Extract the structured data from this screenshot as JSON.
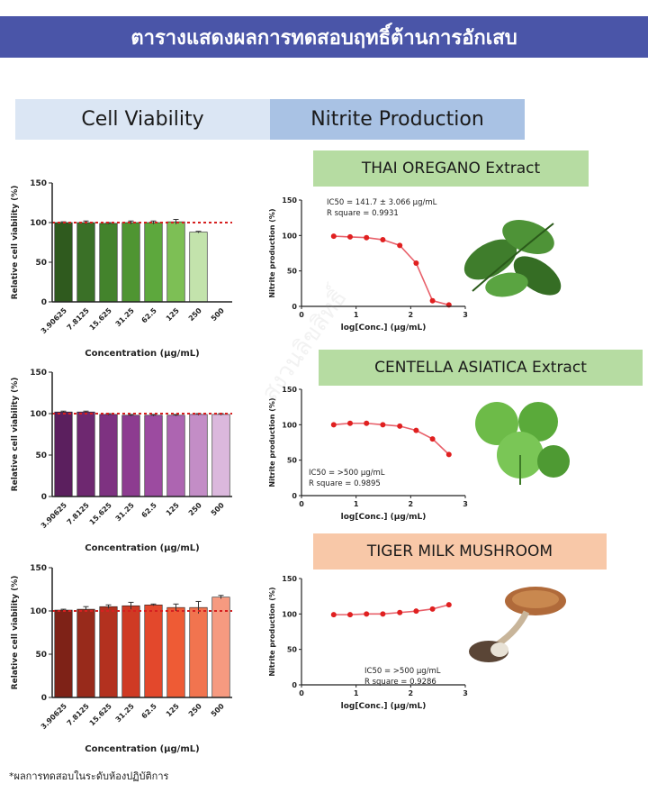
{
  "header": {
    "title": "ตารางแสดงผลการทดสอบฤทธิ์ต้านการอักเสบ"
  },
  "columns": {
    "left": "Cell Viability",
    "right": "Nitrite Production"
  },
  "footnote": "*ผลการทดสอบในระดับห้องปฏิบัติการ",
  "watermark": "สงวนลิขสิทธิ์",
  "extracts": [
    {
      "name": "THAI OREGANO Extract",
      "image_icon": "oregano-leaves-icon"
    },
    {
      "name": "CENTELLA ASIATICA Extract",
      "image_icon": "centella-leaves-icon"
    },
    {
      "name": "TIGER MILK MUSHROOM",
      "image_icon": "mushroom-icon"
    }
  ],
  "chart_data": [
    {
      "type": "bar",
      "panel": "oregano-viability",
      "ylabel": "Relative cell viability (%)",
      "xlabel": "Concentration (µg/mL)",
      "categories": [
        "3.90625",
        "7.8125",
        "15.625",
        "31.25",
        "62.5",
        "125",
        "250",
        "500"
      ],
      "values": [
        100,
        100,
        99,
        100,
        100,
        101,
        88,
        0
      ],
      "errors": [
        1,
        2,
        1,
        2,
        2,
        3,
        1,
        0
      ],
      "ylim": [
        0,
        150
      ],
      "yticks": [
        0,
        50,
        100,
        150
      ],
      "reference_line": 100,
      "colors": [
        "#2f5a1e",
        "#3a7027",
        "#43832c",
        "#4f9532",
        "#5da83d",
        "#7dbf55",
        "#c3e3ac",
        "#ffffff"
      ]
    },
    {
      "type": "line",
      "panel": "oregano-nitrite",
      "ylabel": "Nitrite production (%)",
      "xlabel": "log[Conc.] (µg/mL)",
      "x": [
        0.59,
        0.89,
        1.19,
        1.49,
        1.8,
        2.1,
        2.4,
        2.7
      ],
      "y": [
        99,
        98,
        97,
        94,
        86,
        61,
        8,
        2
      ],
      "xlim": [
        0,
        3
      ],
      "ylim": [
        0,
        150
      ],
      "xticks": [
        0,
        1,
        2,
        3
      ],
      "yticks": [
        0,
        50,
        100,
        150
      ],
      "annotation": [
        "IC50        = 141.7 ± 3.066 µg/mL",
        "R square  = 0.9931"
      ]
    },
    {
      "type": "bar",
      "panel": "centella-viability",
      "ylabel": "Relative cell viability (%)",
      "xlabel": "Concentration (µg/mL)",
      "categories": [
        "3.90625",
        "7.8125",
        "15.625",
        "31.25",
        "62.5",
        "125",
        "250",
        "500"
      ],
      "values": [
        102,
        102,
        99,
        98,
        98,
        98,
        99,
        99
      ],
      "errors": [
        1,
        1,
        1,
        1,
        1,
        1,
        1,
        1
      ],
      "ylim": [
        0,
        150
      ],
      "yticks": [
        0,
        50,
        100,
        150
      ],
      "reference_line": 100,
      "colors": [
        "#5b1f5e",
        "#6e2870",
        "#7e3281",
        "#8d3c90",
        "#9c4ba0",
        "#ad65b1",
        "#c38dc6",
        "#dbb8dd"
      ]
    },
    {
      "type": "line",
      "panel": "centella-nitrite",
      "ylabel": "Nitrite production (%)",
      "xlabel": "log[Conc.] (µg/mL)",
      "x": [
        0.59,
        0.89,
        1.19,
        1.49,
        1.8,
        2.1,
        2.4,
        2.7
      ],
      "y": [
        100,
        102,
        102,
        100,
        98,
        92,
        80,
        58
      ],
      "xlim": [
        0,
        3
      ],
      "ylim": [
        0,
        150
      ],
      "xticks": [
        0,
        1,
        2,
        3
      ],
      "yticks": [
        0,
        50,
        100,
        150
      ],
      "annotation": [
        "IC50        = >500 µg/mL",
        "R square  = 0.9895"
      ]
    },
    {
      "type": "bar",
      "panel": "mushroom-viability",
      "ylabel": "Relative cell viability (%)",
      "xlabel": "Concentration (µg/mL)",
      "categories": [
        "3.90625",
        "7.8125",
        "15.625",
        "31.25",
        "62.5",
        "125",
        "250",
        "500"
      ],
      "values": [
        101,
        102,
        105,
        106,
        107,
        104,
        104,
        116
      ],
      "errors": [
        1,
        3,
        2,
        4,
        1,
        4,
        7,
        2
      ],
      "ylim": [
        0,
        150
      ],
      "yticks": [
        0,
        50,
        100,
        150
      ],
      "reference_line": 100,
      "colors": [
        "#7e2217",
        "#982a1b",
        "#b3311f",
        "#cf3a24",
        "#e3482c",
        "#ee5b35",
        "#f1744f",
        "#f69a80"
      ]
    },
    {
      "type": "line",
      "panel": "mushroom-nitrite",
      "ylabel": "Nitrite production (%)",
      "xlabel": "log[Conc.] (µg/mL)",
      "x": [
        0.59,
        0.89,
        1.19,
        1.49,
        1.8,
        2.1,
        2.4,
        2.7
      ],
      "y": [
        99,
        99,
        100,
        100,
        102,
        104,
        107,
        113
      ],
      "xlim": [
        0,
        3
      ],
      "ylim": [
        0,
        150
      ],
      "xticks": [
        0,
        1,
        2,
        3
      ],
      "yticks": [
        0,
        50,
        100,
        150
      ],
      "annotation": [
        "IC50        = >500 µg/mL",
        "R square  = 0.9286"
      ]
    }
  ]
}
